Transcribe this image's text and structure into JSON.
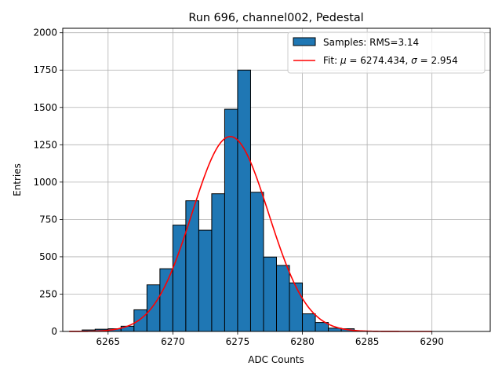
{
  "chart_data": {
    "type": "bar",
    "title": "Run 696, channel002, Pedestal",
    "xlabel": "ADC Counts",
    "ylabel": "Entries",
    "xlim": [
      6261.5,
      6294.5
    ],
    "ylim": [
      0,
      2030
    ],
    "xticks": [
      6265,
      6270,
      6275,
      6280,
      6285,
      6290
    ],
    "yticks": [
      0,
      250,
      500,
      750,
      1000,
      1250,
      1500,
      1750,
      2000
    ],
    "grid": true,
    "legend_position": "top-right",
    "bins": [
      {
        "left": 6263,
        "right": 6264,
        "count": 10
      },
      {
        "left": 6264,
        "right": 6265,
        "count": 15
      },
      {
        "left": 6265,
        "right": 6266,
        "count": 18
      },
      {
        "left": 6266,
        "right": 6267,
        "count": 35
      },
      {
        "left": 6267,
        "right": 6268,
        "count": 145
      },
      {
        "left": 6268,
        "right": 6269,
        "count": 312
      },
      {
        "left": 6269,
        "right": 6270,
        "count": 420
      },
      {
        "left": 6270,
        "right": 6271,
        "count": 712
      },
      {
        "left": 6271,
        "right": 6272,
        "count": 875
      },
      {
        "left": 6272,
        "right": 6273,
        "count": 678
      },
      {
        "left": 6273,
        "right": 6274,
        "count": 922
      },
      {
        "left": 6274,
        "right": 6275,
        "count": 1488
      },
      {
        "left": 6275,
        "right": 6276,
        "count": 1750
      },
      {
        "left": 6276,
        "right": 6277,
        "count": 932
      },
      {
        "left": 6277,
        "right": 6278,
        "count": 498
      },
      {
        "left": 6278,
        "right": 6279,
        "count": 442
      },
      {
        "left": 6279,
        "right": 6280,
        "count": 325
      },
      {
        "left": 6280,
        "right": 6281,
        "count": 118
      },
      {
        "left": 6281,
        "right": 6282,
        "count": 60
      },
      {
        "left": 6282,
        "right": 6283,
        "count": 22
      },
      {
        "left": 6283,
        "right": 6284,
        "count": 18
      }
    ],
    "fit": {
      "mu": 6274.434,
      "sigma": 2.954,
      "amplitude": 1305,
      "x_range": [
        6262,
        6290
      ]
    },
    "legend": [
      {
        "label": "Samples: RMS=3.14",
        "kind": "patch",
        "color": "#1f77b4"
      },
      {
        "label_prefix": "Fit: ",
        "mu_symbol": "μ",
        "mu_text": " = 6274.434, ",
        "sigma_symbol": "σ",
        "sigma_text": " = 2.954",
        "kind": "line",
        "color": "#ff0000"
      }
    ],
    "colors": {
      "bar_fill": "#1f77b4",
      "bar_edge": "#000000",
      "fit_line": "#ff0000",
      "grid": "#b0b0b0"
    }
  }
}
